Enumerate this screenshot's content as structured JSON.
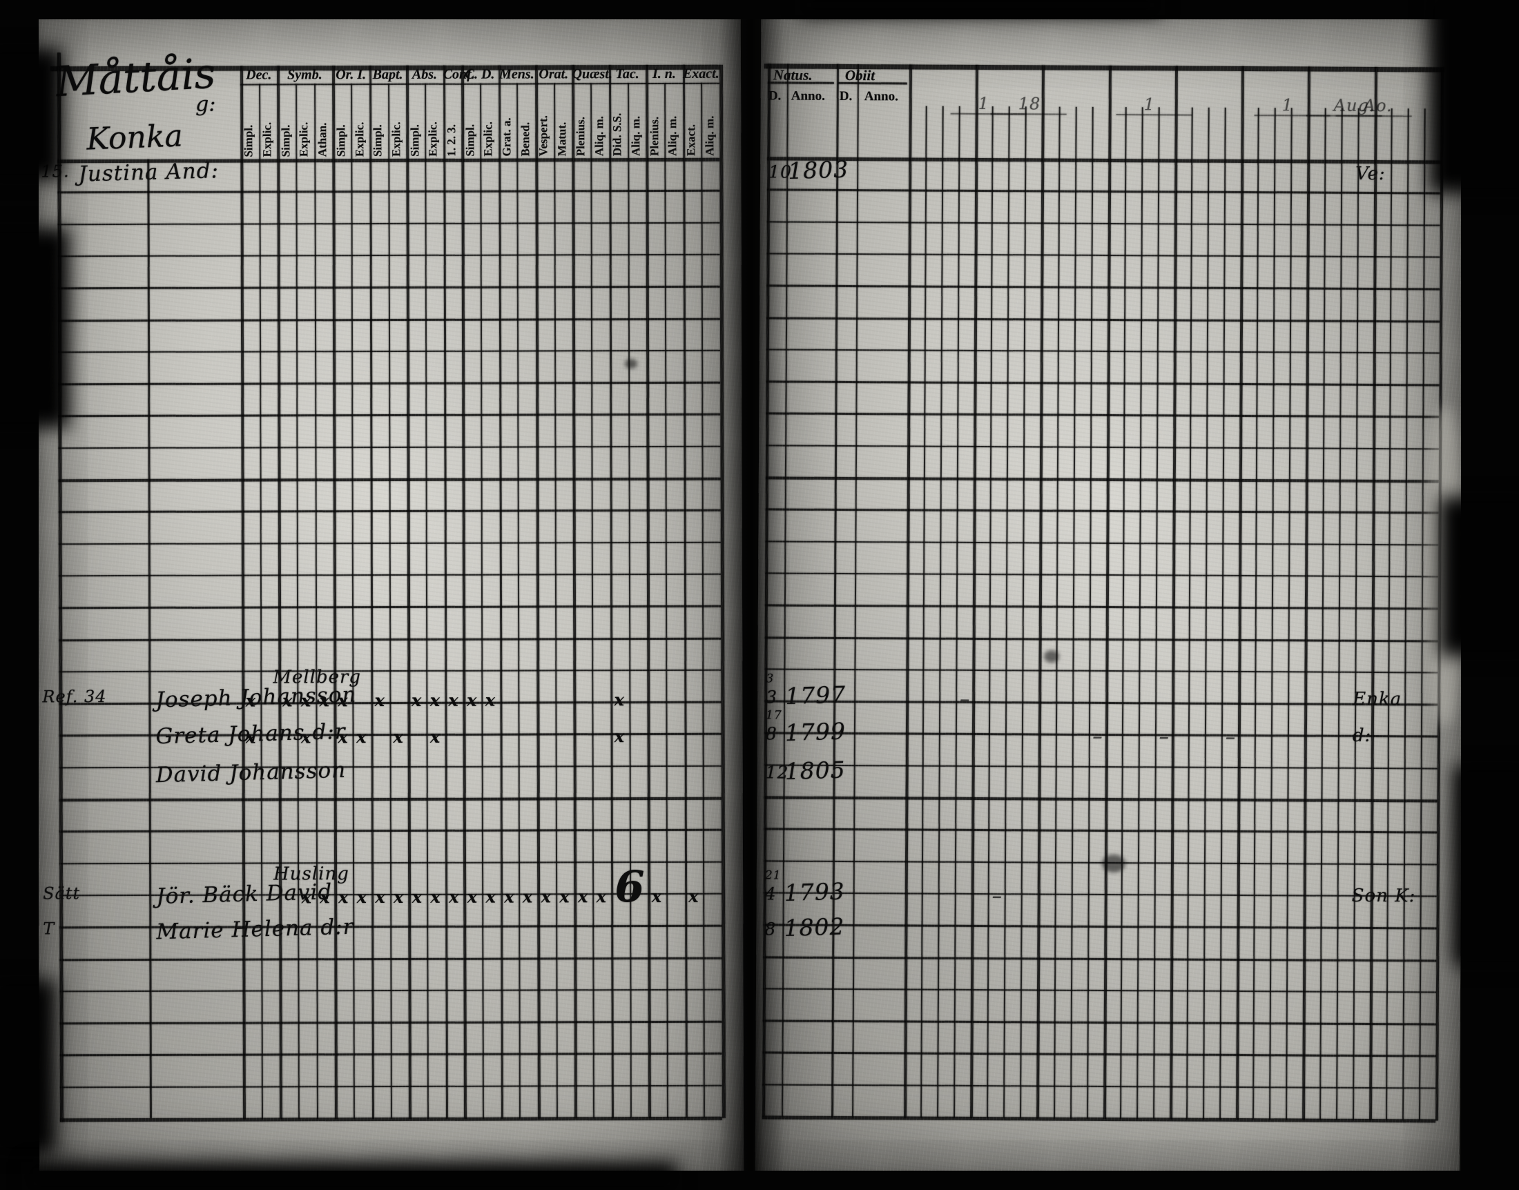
{
  "scan": {
    "left_page": {
      "title": "Måttåis",
      "title_suffix": "g:",
      "subtitle": "Konka",
      "header_groups": [
        {
          "label": "Dec.",
          "subcols": [
            "Simpl.",
            "Explic."
          ]
        },
        {
          "label": "Symb.",
          "subcols": [
            "Simpl.",
            "Explic.",
            "Athan."
          ]
        },
        {
          "label": "Or. I.",
          "subcols": [
            "Simpl.",
            "Explic."
          ]
        },
        {
          "label": "Bapt.",
          "subcols": [
            "Simpl.",
            "Explic."
          ]
        },
        {
          "label": "Abs.",
          "subcols": [
            "Simpl.",
            "Explic."
          ]
        },
        {
          "label": "Conf.",
          "subcols": [
            "1. 2. 3."
          ]
        },
        {
          "label": "C. D.",
          "subcols": [
            "Simpl.",
            "Explic."
          ]
        },
        {
          "label": "Mens.",
          "subcols": [
            "Grat. a.",
            "Bened."
          ]
        },
        {
          "label": "Orat.",
          "subcols": [
            "Vespert.",
            "Matut."
          ]
        },
        {
          "label": "Quæst.",
          "subcols": [
            "Plenius.",
            "Aliq. m."
          ]
        },
        {
          "label": "Tac.",
          "subcols": [
            "Did. S.S.",
            "Aliq. m."
          ]
        },
        {
          "label": "I. n.",
          "subcols": [
            "Plenius.",
            "Aliq. m."
          ]
        },
        {
          "label": "Exact.",
          "subcols": [
            "Exact.",
            "Aliq. m."
          ]
        }
      ]
    },
    "right_page": {
      "natus_label": "Natus.",
      "obiit_label": "Obiit",
      "d_label": "D.",
      "anno_label": "Anno.",
      "faint_year_marks": [
        "1",
        "18",
        "1",
        "1",
        "Aug.",
        "Ao."
      ]
    },
    "mark_glyph": "x",
    "six_glyph": "6",
    "entries": [
      {
        "row": 0.4,
        "margin": "15.",
        "name": "Justina And:",
        "annotation": "",
        "marks": [],
        "six_col": null,
        "natus_d": "10",
        "natus_d_small": "",
        "natus_anno": "1803",
        "right_note": "Ve:",
        "right_dashes": []
      },
      {
        "row": 16.85,
        "margin": "Ref. 34",
        "name": "Joseph Johansson",
        "annotation": "Mellberg",
        "marks": [
          0,
          2,
          3,
          4,
          5,
          7,
          9,
          10,
          11,
          12,
          13,
          20
        ],
        "six_col": null,
        "natus_d": "3",
        "natus_d_small": "3",
        "natus_anno": "1797",
        "right_note": "Enka",
        "right_dashes": [
          1
        ]
      },
      {
        "row": 18.0,
        "margin": "",
        "name": "Greta Johans d:r",
        "annotation": "",
        "marks": [
          0,
          3,
          5,
          6,
          8,
          10,
          20
        ],
        "six_col": null,
        "natus_d": "8",
        "natus_d_small": "17",
        "natus_anno": "1799",
        "right_note": "d:",
        "right_dashes": [
          5,
          7,
          9
        ]
      },
      {
        "row": 19.2,
        "margin": "",
        "name": "David Johansson",
        "annotation": "",
        "marks": [],
        "six_col": null,
        "natus_d": "12",
        "natus_d_small": "",
        "natus_anno": "1805",
        "right_note": "",
        "right_dashes": []
      },
      {
        "row": 23.0,
        "margin": "Sätt",
        "name": "Jör. Bäck David",
        "annotation": "Husling",
        "marks": [
          3,
          4,
          5,
          6,
          7,
          8,
          9,
          10,
          11,
          12,
          13,
          14,
          15,
          16,
          17,
          18,
          19,
          22,
          24
        ],
        "six_col": 20.2,
        "natus_d": "4",
        "natus_d_small": "21",
        "natus_anno": "1793",
        "right_note": "Son K:",
        "right_dashes": [
          2
        ]
      },
      {
        "row": 24.1,
        "margin": "T",
        "name": "Marie Helena d:r",
        "annotation": "",
        "marks": [],
        "six_col": null,
        "natus_d": "8",
        "natus_d_small": "",
        "natus_anno": "1802",
        "right_note": "",
        "right_dashes": []
      }
    ]
  }
}
